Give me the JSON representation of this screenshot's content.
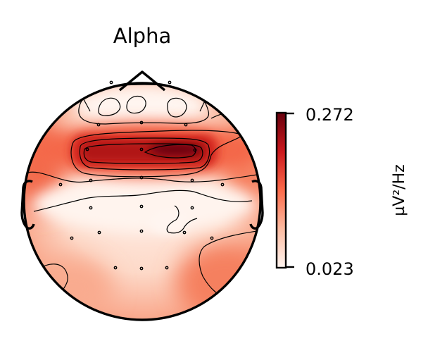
{
  "chart_data": {
    "type": "heatmap",
    "subtype": "eeg-topomap",
    "title": "Alpha",
    "colorbar": {
      "label": "µV²/Hz",
      "min": 0.023,
      "max": 0.272,
      "min_label": "0.023",
      "max_label": "0.272",
      "colormap": "Reds",
      "colors": [
        "#fff5f0",
        "#fcbba1",
        "#fb6a4a",
        "#cb181d",
        "#67000d"
      ]
    },
    "grid": false,
    "legend": "none"
  }
}
